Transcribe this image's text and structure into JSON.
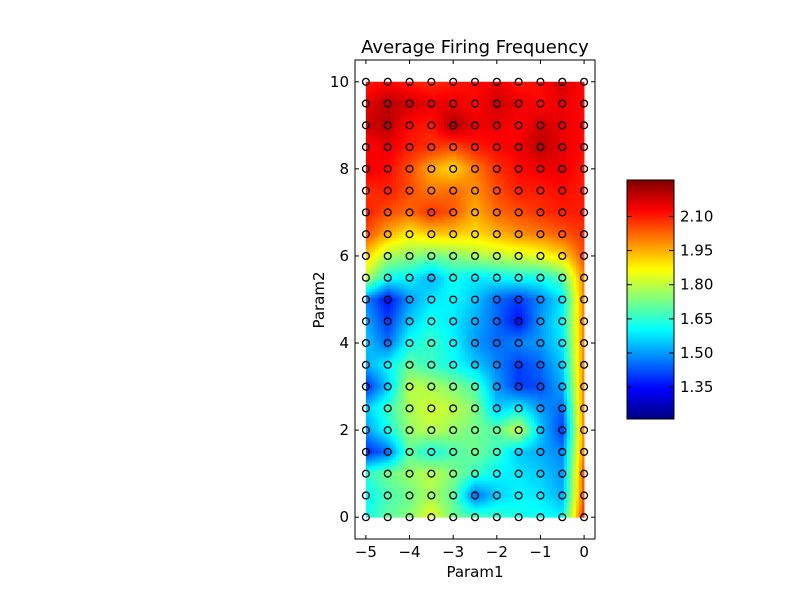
{
  "chart_data": {
    "type": "heatmap",
    "title": "Average Firing Frequency",
    "xlabel": "Param1",
    "ylabel": "Param2",
    "xlim": [
      -5.25,
      0.25
    ],
    "ylim": [
      -0.5,
      10.5
    ],
    "xticks": [
      -5,
      -4,
      -3,
      -2,
      -1,
      0
    ],
    "xtick_labels": [
      "−5",
      "−4",
      "−3",
      "−2",
      "−1",
      "0"
    ],
    "yticks": [
      0,
      2,
      4,
      6,
      8,
      10
    ],
    "ytick_labels": [
      "0",
      "2",
      "4",
      "6",
      "8",
      "10"
    ],
    "colormap": "jet",
    "colorbar": {
      "range": [
        1.21,
        2.26
      ],
      "ticks": [
        1.35,
        1.5,
        1.65,
        1.8,
        1.95,
        2.1
      ],
      "tick_labels": [
        "1.35",
        "1.50",
        "1.65",
        "1.80",
        "1.95",
        "2.10"
      ]
    },
    "grid_x": [
      -5,
      -4.5,
      -4,
      -3.5,
      -3,
      -2.5,
      -2,
      -1.5,
      -1,
      -0.5,
      0
    ],
    "grid_y": [
      0,
      0.5,
      1,
      1.5,
      2,
      2.5,
      3,
      3.5,
      4,
      4.5,
      5,
      5.5,
      6,
      6.5,
      7,
      7.5,
      8,
      8.5,
      9,
      9.5,
      10
    ],
    "z_rows": [
      [
        1.62,
        1.7,
        1.74,
        1.85,
        1.72,
        1.68,
        1.66,
        1.63,
        1.62,
        1.6,
        2.1
      ],
      [
        1.6,
        1.68,
        1.72,
        1.78,
        1.7,
        1.45,
        1.55,
        1.6,
        1.58,
        1.52,
        2.05
      ],
      [
        1.65,
        1.72,
        1.76,
        1.8,
        1.74,
        1.66,
        1.6,
        1.58,
        1.55,
        1.5,
        2.05
      ],
      [
        1.38,
        1.45,
        1.7,
        1.62,
        1.68,
        1.72,
        1.66,
        1.55,
        1.52,
        1.48,
        2.0
      ],
      [
        1.5,
        1.62,
        1.76,
        1.8,
        1.76,
        1.72,
        1.7,
        1.82,
        1.55,
        1.4,
        2.0
      ],
      [
        1.55,
        1.66,
        1.78,
        1.82,
        1.8,
        1.74,
        1.55,
        1.6,
        1.5,
        1.45,
        2.0
      ],
      [
        1.38,
        1.55,
        1.8,
        1.78,
        1.74,
        1.68,
        1.5,
        1.4,
        1.42,
        1.52,
        2.0
      ],
      [
        1.52,
        1.6,
        1.7,
        1.66,
        1.62,
        1.55,
        1.48,
        1.4,
        1.45,
        1.55,
        2.0
      ],
      [
        1.55,
        1.45,
        1.62,
        1.66,
        1.6,
        1.5,
        1.45,
        1.48,
        1.5,
        1.58,
        2.0
      ],
      [
        1.52,
        1.4,
        1.55,
        1.62,
        1.58,
        1.52,
        1.45,
        1.35,
        1.5,
        1.6,
        2.0
      ],
      [
        1.48,
        1.35,
        1.5,
        1.58,
        1.6,
        1.55,
        1.45,
        1.4,
        1.48,
        1.58,
        2.0
      ],
      [
        1.8,
        1.62,
        1.6,
        1.52,
        1.62,
        1.58,
        1.6,
        1.62,
        1.62,
        1.7,
        2.0
      ],
      [
        1.92,
        1.78,
        1.75,
        1.72,
        1.74,
        1.78,
        1.8,
        1.82,
        1.85,
        1.9,
        2.05
      ],
      [
        2.05,
        1.95,
        1.88,
        1.92,
        1.92,
        1.9,
        1.94,
        1.98,
        2.0,
        2.04,
        2.08
      ],
      [
        2.1,
        2.05,
        2.02,
        2.08,
        2.04,
        1.95,
        2.02,
        2.05,
        2.08,
        2.1,
        2.1
      ],
      [
        2.08,
        2.1,
        2.05,
        2.0,
        2.02,
        1.98,
        2.05,
        2.1,
        2.1,
        2.12,
        2.1
      ],
      [
        2.15,
        2.12,
        2.05,
        1.95,
        1.9,
        2.0,
        2.08,
        2.12,
        2.14,
        2.15,
        2.1
      ],
      [
        2.12,
        2.15,
        2.1,
        2.08,
        2.05,
        2.1,
        2.12,
        2.14,
        2.2,
        2.15,
        2.12
      ],
      [
        2.18,
        2.2,
        2.12,
        2.1,
        2.22,
        2.15,
        2.15,
        2.12,
        2.18,
        2.15,
        2.12
      ],
      [
        2.15,
        2.2,
        2.18,
        2.15,
        2.15,
        2.12,
        2.18,
        2.15,
        2.12,
        2.15,
        2.12
      ],
      [
        2.1,
        2.12,
        2.1,
        2.08,
        2.1,
        2.12,
        2.15,
        2.1,
        2.12,
        2.18,
        2.12
      ]
    ]
  }
}
